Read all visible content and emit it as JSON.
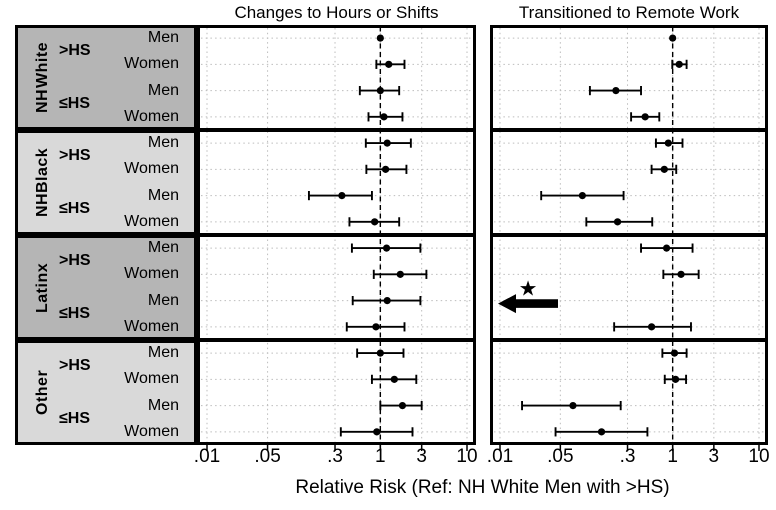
{
  "figure": {
    "xlabel": "Relative Risk (Ref: NH White Men with >HS)",
    "panel_titles": [
      "Changes to Hours or Shifts",
      "Transitioned to Remote Work"
    ]
  },
  "sidebar": {
    "groups": [
      {
        "race": "NH White",
        "race_lines": [
          "NH",
          "White"
        ],
        "shade": "dark"
      },
      {
        "race": "NH Black",
        "race_lines": [
          "NH",
          "Black"
        ],
        "shade": "light"
      },
      {
        "race": "Latinx",
        "race_lines": [
          "Latinx"
        ],
        "shade": "dark"
      },
      {
        "race": "Other",
        "race_lines": [
          "Other"
        ],
        "shade": "light"
      }
    ],
    "education_labels": [
      ">HS",
      "≤HS"
    ],
    "sex_labels": [
      "Men",
      "Women",
      "Men",
      "Women"
    ]
  },
  "colors": {
    "sidebar_dark": "#b5b5b5",
    "sidebar_light": "#d9d9d9",
    "grid_dot": "#bdbdbd",
    "ink": "#000000",
    "panel_bg": "#ffffff"
  },
  "annotations": {
    "star_symbol": "★",
    "offscale_direction": "left"
  },
  "chart_data": {
    "type": "scatter",
    "subtype": "forest-plot",
    "x_scale": "log",
    "xlim": [
      0.01,
      10
    ],
    "x_ticks": [
      {
        "label": ".01",
        "value": 0.01
      },
      {
        "label": ".05",
        "value": 0.05
      },
      {
        "label": ".3",
        "value": 0.3
      },
      {
        "label": "1",
        "value": 1
      },
      {
        "label": "3",
        "value": 3
      },
      {
        "label": "10",
        "value": 10
      }
    ],
    "reference_line": 1,
    "xlabel": "Relative Risk (Ref: NH White Men with >HS)",
    "grid": "dotted",
    "panels": [
      {
        "title": "Changes to Hours or Shifts",
        "rows": [
          {
            "group": "NH White",
            "education": ">HS",
            "sex": "Men",
            "rr": 1.0,
            "lo": null,
            "hi": null,
            "reference": true
          },
          {
            "group": "NH White",
            "education": ">HS",
            "sex": "Women",
            "rr": 1.25,
            "lo": 0.9,
            "hi": 1.9
          },
          {
            "group": "NH White",
            "education": "≤HS",
            "sex": "Men",
            "rr": 1.0,
            "lo": 0.58,
            "hi": 1.65
          },
          {
            "group": "NH White",
            "education": "≤HS",
            "sex": "Women",
            "rr": 1.1,
            "lo": 0.73,
            "hi": 1.8
          },
          {
            "group": "NH Black",
            "education": ">HS",
            "sex": "Men",
            "rr": 1.2,
            "lo": 0.68,
            "hi": 2.25
          },
          {
            "group": "NH Black",
            "education": ">HS",
            "sex": "Women",
            "rr": 1.15,
            "lo": 0.69,
            "hi": 2.0
          },
          {
            "group": "NH Black",
            "education": "≤HS",
            "sex": "Men",
            "rr": 0.36,
            "lo": 0.15,
            "hi": 0.8
          },
          {
            "group": "NH Black",
            "education": "≤HS",
            "sex": "Women",
            "rr": 0.86,
            "lo": 0.44,
            "hi": 1.65
          },
          {
            "group": "Latinx",
            "education": ">HS",
            "sex": "Men",
            "rr": 1.18,
            "lo": 0.47,
            "hi": 2.9
          },
          {
            "group": "Latinx",
            "education": ">HS",
            "sex": "Women",
            "rr": 1.7,
            "lo": 0.84,
            "hi": 3.4
          },
          {
            "group": "Latinx",
            "education": "≤HS",
            "sex": "Men",
            "rr": 1.2,
            "lo": 0.48,
            "hi": 2.9
          },
          {
            "group": "Latinx",
            "education": "≤HS",
            "sex": "Women",
            "rr": 0.89,
            "lo": 0.41,
            "hi": 1.9
          },
          {
            "group": "Other",
            "education": ">HS",
            "sex": "Men",
            "rr": 1.0,
            "lo": 0.54,
            "hi": 1.85
          },
          {
            "group": "Other",
            "education": ">HS",
            "sex": "Women",
            "rr": 1.45,
            "lo": 0.8,
            "hi": 2.6
          },
          {
            "group": "Other",
            "education": "≤HS",
            "sex": "Men",
            "rr": 1.8,
            "lo": 1.0,
            "hi": 3.0
          },
          {
            "group": "Other",
            "education": "≤HS",
            "sex": "Women",
            "rr": 0.91,
            "lo": 0.35,
            "hi": 2.35
          }
        ]
      },
      {
        "title": "Transitioned to Remote Work",
        "rows": [
          {
            "group": "NH White",
            "education": ">HS",
            "sex": "Men",
            "rr": 1.0,
            "lo": null,
            "hi": null,
            "reference": true
          },
          {
            "group": "NH White",
            "education": ">HS",
            "sex": "Women",
            "rr": 1.19,
            "lo": 0.99,
            "hi": 1.45
          },
          {
            "group": "NH White",
            "education": "≤HS",
            "sex": "Men",
            "rr": 0.22,
            "lo": 0.11,
            "hi": 0.43
          },
          {
            "group": "NH White",
            "education": "≤HS",
            "sex": "Women",
            "rr": 0.48,
            "lo": 0.33,
            "hi": 0.7
          },
          {
            "group": "NH Black",
            "education": ">HS",
            "sex": "Men",
            "rr": 0.89,
            "lo": 0.64,
            "hi": 1.3
          },
          {
            "group": "NH Black",
            "education": ">HS",
            "sex": "Women",
            "rr": 0.8,
            "lo": 0.57,
            "hi": 1.1
          },
          {
            "group": "NH Black",
            "education": "≤HS",
            "sex": "Men",
            "rr": 0.09,
            "lo": 0.03,
            "hi": 0.27
          },
          {
            "group": "NH Black",
            "education": "≤HS",
            "sex": "Women",
            "rr": 0.23,
            "lo": 0.1,
            "hi": 0.58
          },
          {
            "group": "Latinx",
            "education": ">HS",
            "sex": "Men",
            "rr": 0.85,
            "lo": 0.43,
            "hi": 1.7
          },
          {
            "group": "Latinx",
            "education": ">HS",
            "sex": "Women",
            "rr": 1.25,
            "lo": 0.78,
            "hi": 2.0
          },
          {
            "group": "Latinx",
            "education": "≤HS",
            "sex": "Men",
            "rr": null,
            "lo": null,
            "hi": null,
            "offscale": true,
            "annotation": "star-and-left-arrow"
          },
          {
            "group": "Latinx",
            "education": "≤HS",
            "sex": "Women",
            "rr": 0.57,
            "lo": 0.21,
            "hi": 1.63
          },
          {
            "group": "Other",
            "education": ">HS",
            "sex": "Men",
            "rr": 1.05,
            "lo": 0.76,
            "hi": 1.45
          },
          {
            "group": "Other",
            "education": ">HS",
            "sex": "Women",
            "rr": 1.08,
            "lo": 0.81,
            "hi": 1.43
          },
          {
            "group": "Other",
            "education": "≤HS",
            "sex": "Men",
            "rr": 0.07,
            "lo": 0.018,
            "hi": 0.25
          },
          {
            "group": "Other",
            "education": "≤HS",
            "sex": "Women",
            "rr": 0.15,
            "lo": 0.044,
            "hi": 0.51
          }
        ]
      }
    ]
  }
}
